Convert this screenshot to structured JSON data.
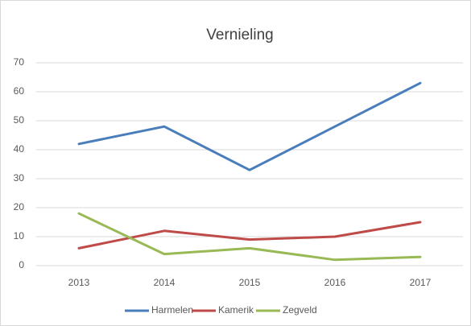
{
  "chart_data": {
    "type": "line",
    "title": "Vernieling",
    "categories": [
      "2013",
      "2014",
      "2015",
      "2016",
      "2017"
    ],
    "series": [
      {
        "name": "Harmelen",
        "color": "#4a7ebb",
        "values": [
          42,
          48,
          33,
          48,
          63
        ]
      },
      {
        "name": "Kamerik",
        "color": "#be4b48",
        "values": [
          6,
          12,
          9,
          10,
          15
        ]
      },
      {
        "name": "Zegveld",
        "color": "#98b954",
        "values": [
          18,
          4,
          6,
          2,
          3
        ]
      }
    ],
    "ylim": [
      0,
      70
    ],
    "yticks": [
      0,
      10,
      20,
      30,
      40,
      50,
      60,
      70
    ],
    "grid": true,
    "legend": "bottom"
  }
}
